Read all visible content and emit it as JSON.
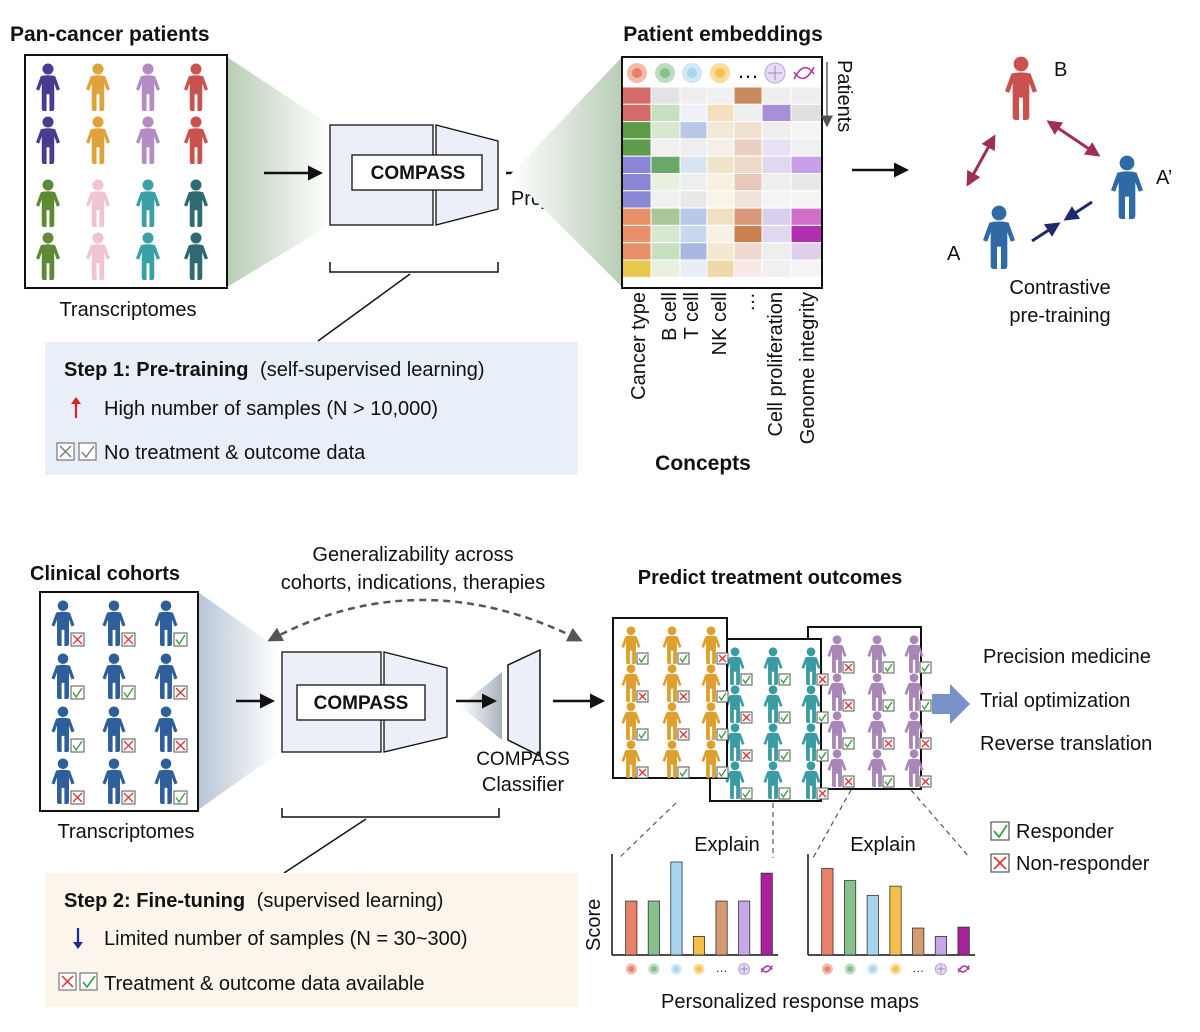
{
  "top": {
    "pan_cancer_title": "Pan-cancer patients",
    "transcriptomes_label": "Transcriptomes",
    "compass_label": "COMPASS",
    "project_label": "Project",
    "embeddings_title": "Patient embeddings",
    "patients_label": "Patients",
    "concepts_title": "Concepts",
    "concept_labels": [
      "Cancer type",
      "B cell",
      "T cell",
      "NK cell",
      "…",
      "Cell proliferation",
      "Genome integrity"
    ],
    "contrast": {
      "label_a": "A",
      "label_b": "B",
      "label_a_prime": "A’",
      "caption_line1": "Contrastive",
      "caption_line2": "pre-training"
    },
    "step1": {
      "title_bold": "Step 1: Pre-training",
      "title_rest": "(self-supervised learning)",
      "line1": "High number of samples (N > 10,000)",
      "line2": "No treatment & outcome data"
    }
  },
  "bottom": {
    "clinical_title": "Clinical cohorts",
    "transcriptomes_label": "Transcriptomes",
    "generalizability_line1": "Generalizability across",
    "generalizability_line2": "cohorts, indications, therapies",
    "compass_label": "COMPASS",
    "classifier_line1": "COMPASS",
    "classifier_line2": "Classifier",
    "predict_title": "Predict treatment outcomes",
    "applications": [
      "Precision medicine",
      "Trial optimization",
      "Reverse translation"
    ],
    "explain_label": "Explain",
    "score_label": "Score",
    "maps_caption": "Personalized response maps",
    "legend": {
      "responder": "Responder",
      "non_responder": "Non-responder"
    },
    "step2": {
      "title_bold": "Step 2: Fine-tuning",
      "title_rest": "(supervised learning)",
      "line1": "Limited number of samples (N = 30~300)",
      "line2": "Treatment & outcome data available"
    }
  },
  "colors": {
    "person_rows": [
      [
        "#4a3b8f",
        "#e0a23a",
        "#b48cc4",
        "#c9524f"
      ],
      [
        "#4a3b8f",
        "#e0a23a",
        "#b48cc4",
        "#c9524f"
      ],
      [
        "#5e8a35",
        "#f0c4d0",
        "#3aa0a8",
        "#2f6a72"
      ],
      [
        "#5e8a35",
        "#f0c4d0",
        "#3aa0a8",
        "#2f6a72"
      ]
    ],
    "clinical_person": "#2f5f9a",
    "panel_orange": "#dda02e",
    "panel_teal": "#3a9ca3",
    "panel_purple": "#a886b8",
    "step1_bg": "#e8eff8",
    "step2_bg": "#fcf5ec",
    "arrow_blue": "#7891c8"
  },
  "chart_data": [
    {
      "type": "bar",
      "ylabel": "Score",
      "categories": [
        "Cancer type",
        "B cell",
        "T cell",
        "NK cell",
        "…",
        "Cell proliferation",
        "Genome integrity"
      ],
      "values": [
        0.58,
        0.58,
        1.0,
        0.2,
        0.58,
        0.58,
        0.88
      ],
      "colors": [
        "#e8806a",
        "#86c08a",
        "#a8d4f0",
        "#f5c04a",
        "#d49a72",
        "#c5a8e8",
        "#a8209a"
      ]
    },
    {
      "type": "bar",
      "ylabel": "",
      "categories": [
        "Cancer type",
        "B cell",
        "T cell",
        "NK cell",
        "…",
        "Cell proliferation",
        "Genome integrity"
      ],
      "values": [
        0.93,
        0.8,
        0.64,
        0.74,
        0.29,
        0.2,
        0.3
      ],
      "colors": [
        "#e8806a",
        "#86c08a",
        "#a8d4f0",
        "#f5c04a",
        "#d49a72",
        "#c5a8e8",
        "#a8209a"
      ]
    }
  ]
}
